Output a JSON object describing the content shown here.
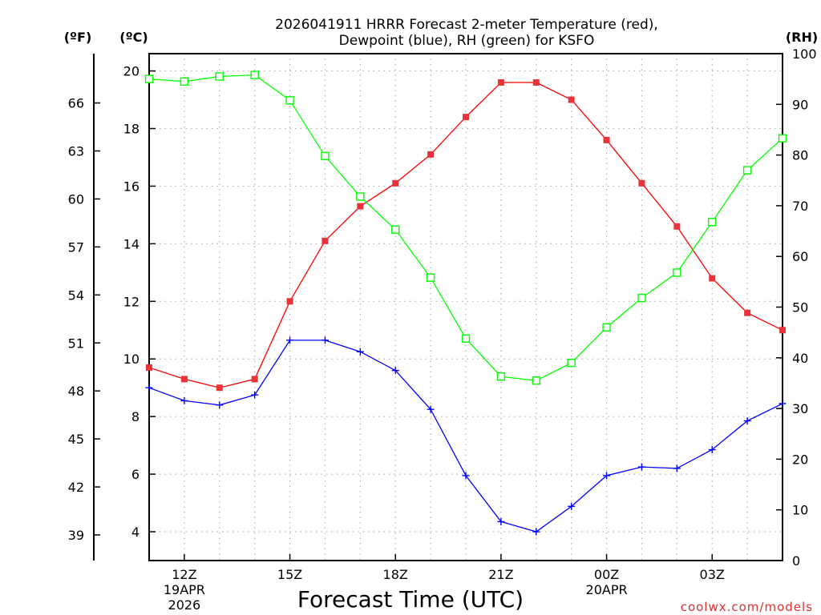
{
  "chart_data": {
    "type": "line",
    "title": [
      "2026041911 HRRR Forecast 2-meter Temperature (red),",
      "Dewpoint (blue), RH (green) for KSFO"
    ],
    "xlabel": "Forecast Time (UTC)",
    "credit": "coolwx.com/models",
    "left_unit_f": "(ºF)",
    "left_unit_c": "(ºC)",
    "right_unit": "(RH)",
    "x": [
      11,
      12,
      13,
      14,
      15,
      16,
      17,
      18,
      19,
      20,
      21,
      22,
      23,
      24,
      25,
      26,
      27,
      28,
      29
    ],
    "xlim": [
      11,
      29
    ],
    "ylim_c": [
      3.0,
      20.6
    ],
    "ylim_rh": [
      0,
      100
    ],
    "yticks_c": [
      4,
      6,
      8,
      10,
      12,
      14,
      16,
      18,
      20
    ],
    "yticks_f": [
      39,
      42,
      45,
      48,
      51,
      54,
      57,
      60,
      63,
      66
    ],
    "yticks_rh": [
      0,
      10,
      20,
      30,
      40,
      50,
      60,
      70,
      80,
      90,
      100
    ],
    "xticks": [
      {
        "x": 12,
        "label": "12Z",
        "sub1": "19APR",
        "sub2": "2026"
      },
      {
        "x": 15,
        "label": "15Z",
        "sub1": "",
        "sub2": ""
      },
      {
        "x": 18,
        "label": "18Z",
        "sub1": "",
        "sub2": ""
      },
      {
        "x": 21,
        "label": "21Z",
        "sub1": "",
        "sub2": ""
      },
      {
        "x": 24,
        "label": "00Z",
        "sub1": "20APR",
        "sub2": ""
      },
      {
        "x": 27,
        "label": "03Z",
        "sub1": "",
        "sub2": ""
      }
    ],
    "series": [
      {
        "name": "Temperature",
        "axis": "c",
        "color": "#ff0000",
        "marker": "filled-square",
        "values": [
          9.7,
          9.3,
          9.0,
          9.3,
          12.0,
          14.1,
          15.3,
          16.1,
          17.1,
          18.4,
          19.6,
          19.6,
          19.0,
          17.6,
          16.1,
          14.6,
          12.8,
          11.6,
          11.0
        ]
      },
      {
        "name": "Dewpoint",
        "axis": "c",
        "color": "#0000ff",
        "marker": "plus",
        "values": [
          9.0,
          8.55,
          8.4,
          8.75,
          10.65,
          10.65,
          10.25,
          9.6,
          8.25,
          5.95,
          4.35,
          4.0,
          4.88,
          5.95,
          6.25,
          6.2,
          6.85,
          7.85,
          8.45
        ]
      },
      {
        "name": "RH",
        "axis": "rh",
        "color": "#00ff00",
        "marker": "open-square",
        "values": [
          95.0,
          94.5,
          95.5,
          95.8,
          90.8,
          79.8,
          71.8,
          65.3,
          55.8,
          43.8,
          36.3,
          35.5,
          39.0,
          46.0,
          51.8,
          56.8,
          66.8,
          77.0,
          83.3
        ]
      }
    ]
  }
}
